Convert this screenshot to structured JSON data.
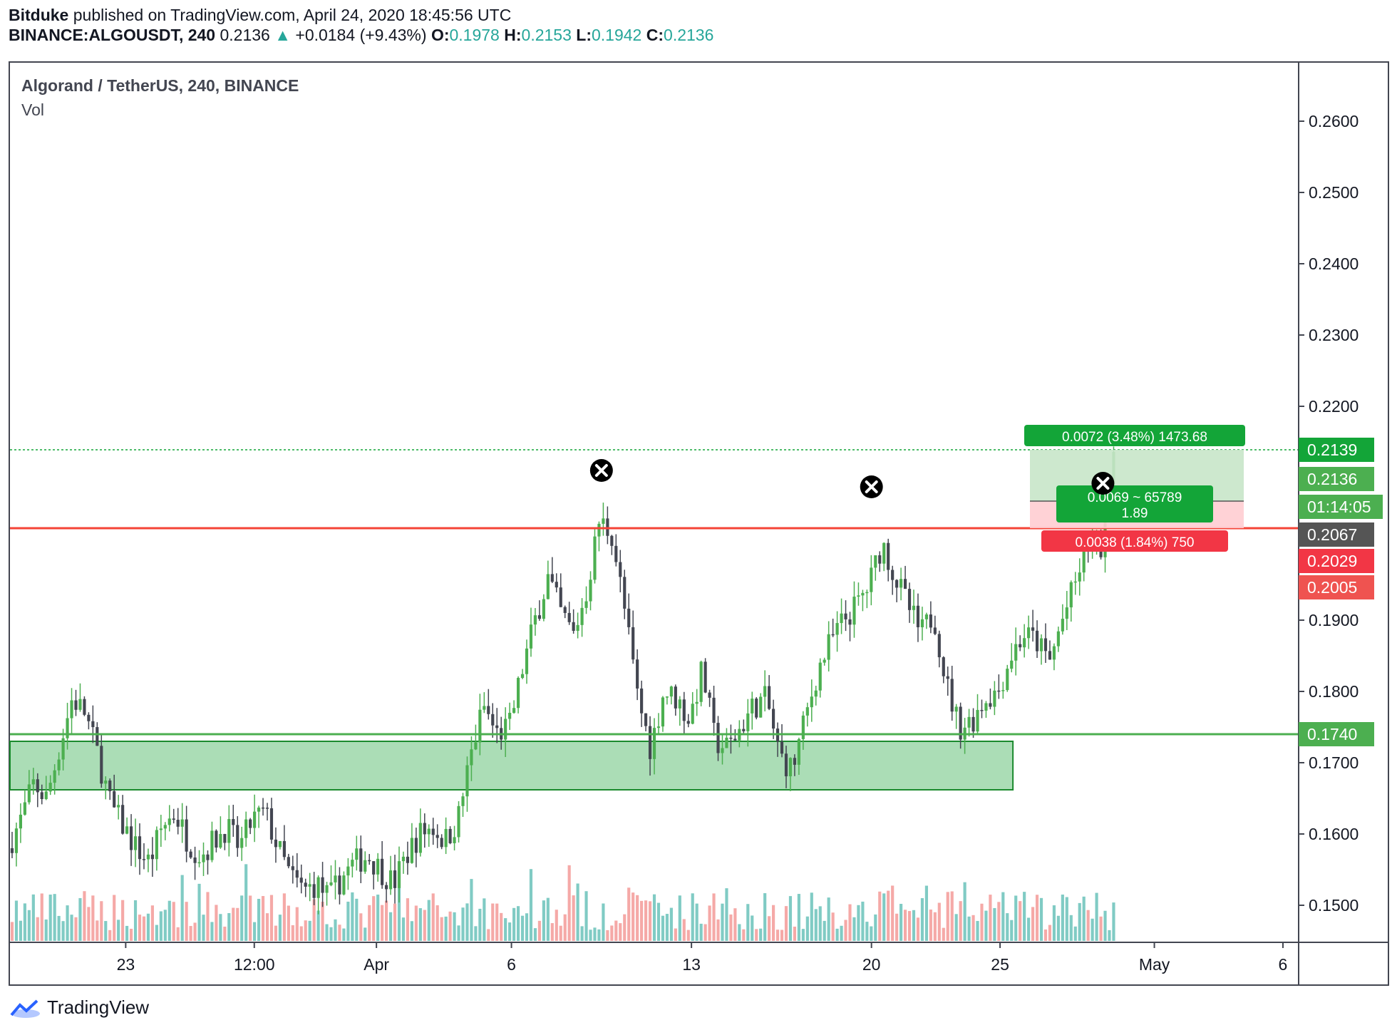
{
  "header": {
    "author": "Bitduke",
    "published": "published on TradingView.com, April 24, 2020 18:45:56 UTC",
    "symbol": "BINANCE:ALGOUSDT, 240",
    "last": "0.2136",
    "change": "+0.0184 (+9.43%)",
    "o_label": "O:",
    "o": "0.1978",
    "h_label": "H:",
    "h": "0.2153",
    "l_label": "L:",
    "l": "0.1942",
    "c_label": "C:",
    "c": "0.2136"
  },
  "legend": {
    "title": "Algorand / TetherUS, 240, BINANCE",
    "indicator": "Vol"
  },
  "brand": {
    "name": "TradingView"
  },
  "colors": {
    "up": "#26a69a",
    "down": "#ef5350",
    "zone": "#8fd19e",
    "support": "#4caf50",
    "resistance": "#f44336"
  },
  "chart_data": {
    "type": "candlestick",
    "title": "Algorand / TetherUS, 240, BINANCE",
    "ylim": [
      0.145,
      0.268
    ],
    "y_ticks": [
      "0.2600",
      "0.2500",
      "0.2400",
      "0.2300",
      "0.2200",
      "0.1900",
      "0.1800",
      "0.1700",
      "0.1600",
      "0.1500"
    ],
    "x_ticks": [
      "23",
      "12:00",
      "Apr",
      "6",
      "13",
      "20",
      "25",
      "May",
      "6"
    ],
    "x_tick_index": [
      0.09,
      0.19,
      0.285,
      0.39,
      0.53,
      0.67,
      0.77,
      0.89,
      0.99
    ],
    "price_series": [
      [
        0,
        0.158
      ],
      [
        0.01,
        0.162
      ],
      [
        0.02,
        0.167
      ],
      [
        0.03,
        0.165
      ],
      [
        0.04,
        0.172
      ],
      [
        0.05,
        0.179
      ],
      [
        0.06,
        0.177
      ],
      [
        0.07,
        0.171
      ],
      [
        0.08,
        0.164
      ],
      [
        0.09,
        0.161
      ],
      [
        0.1,
        0.158
      ],
      [
        0.11,
        0.156
      ],
      [
        0.12,
        0.161
      ],
      [
        0.13,
        0.163
      ],
      [
        0.14,
        0.159
      ],
      [
        0.15,
        0.157
      ],
      [
        0.16,
        0.159
      ],
      [
        0.17,
        0.161
      ],
      [
        0.18,
        0.158
      ],
      [
        0.19,
        0.162
      ],
      [
        0.2,
        0.163
      ],
      [
        0.21,
        0.158
      ],
      [
        0.22,
        0.154
      ],
      [
        0.23,
        0.152
      ],
      [
        0.24,
        0.153
      ],
      [
        0.25,
        0.151
      ],
      [
        0.26,
        0.154
      ],
      [
        0.27,
        0.156
      ],
      [
        0.28,
        0.157
      ],
      [
        0.29,
        0.155
      ],
      [
        0.3,
        0.153
      ],
      [
        0.31,
        0.157
      ],
      [
        0.32,
        0.16
      ],
      [
        0.33,
        0.161
      ],
      [
        0.34,
        0.159
      ],
      [
        0.35,
        0.162
      ],
      [
        0.36,
        0.171
      ],
      [
        0.37,
        0.178
      ],
      [
        0.38,
        0.174
      ],
      [
        0.39,
        0.175
      ],
      [
        0.4,
        0.183
      ],
      [
        0.41,
        0.19
      ],
      [
        0.42,
        0.196
      ],
      [
        0.43,
        0.191
      ],
      [
        0.44,
        0.188
      ],
      [
        0.45,
        0.194
      ],
      [
        0.46,
        0.204
      ],
      [
        0.47,
        0.202
      ],
      [
        0.48,
        0.191
      ],
      [
        0.49,
        0.179
      ],
      [
        0.5,
        0.172
      ],
      [
        0.51,
        0.18
      ],
      [
        0.52,
        0.179
      ],
      [
        0.53,
        0.176
      ],
      [
        0.54,
        0.183
      ],
      [
        0.55,
        0.173
      ],
      [
        0.56,
        0.172
      ],
      [
        0.57,
        0.175
      ],
      [
        0.58,
        0.178
      ],
      [
        0.59,
        0.179
      ],
      [
        0.6,
        0.171
      ],
      [
        0.61,
        0.169
      ],
      [
        0.62,
        0.176
      ],
      [
        0.63,
        0.183
      ],
      [
        0.64,
        0.187
      ],
      [
        0.65,
        0.19
      ],
      [
        0.66,
        0.192
      ],
      [
        0.67,
        0.195
      ],
      [
        0.68,
        0.201
      ],
      [
        0.69,
        0.196
      ],
      [
        0.7,
        0.192
      ],
      [
        0.71,
        0.188
      ],
      [
        0.72,
        0.191
      ],
      [
        0.73,
        0.181
      ],
      [
        0.74,
        0.175
      ],
      [
        0.75,
        0.176
      ],
      [
        0.76,
        0.179
      ],
      [
        0.77,
        0.18
      ],
      [
        0.78,
        0.185
      ],
      [
        0.79,
        0.188
      ],
      [
        0.8,
        0.187
      ],
      [
        0.81,
        0.184
      ],
      [
        0.82,
        0.19
      ],
      [
        0.83,
        0.195
      ],
      [
        0.84,
        0.201
      ],
      [
        0.85,
        0.2
      ],
      [
        0.86,
        0.2136
      ]
    ],
    "support_zone": [
      0.1662,
      0.173
    ],
    "support_line": 0.174,
    "resistance_line": 0.2029,
    "current_price_line": 0.2139,
    "markers": [
      [
        0.46,
        0.211
      ],
      [
        0.67,
        0.2087
      ],
      [
        0.85,
        0.2092
      ]
    ],
    "position": {
      "entry": 0.2067,
      "target": 0.2139,
      "stop": 0.2029,
      "target_label": "0.0072 (3.48%) 1473.68",
      "mid_label_line1": "0.0069 ~ 65789",
      "mid_label_line2": "1.89",
      "stop_label": "0.0038 (1.84%) 750"
    },
    "price_badges": [
      {
        "label": "0.2139",
        "value": 0.2139,
        "color": "#13a538"
      },
      {
        "label": "0.2136",
        "value": 0.2098,
        "color": "#4caf50"
      },
      {
        "label": "01:14:05",
        "value": 0.2059,
        "color": "#4caf50"
      },
      {
        "label": "0.2067",
        "value": 0.202,
        "color": "#555555"
      },
      {
        "label": "0.2029",
        "value": 0.1983,
        "color": "#f23645"
      },
      {
        "label": "0.2005",
        "value": 0.1946,
        "color": "#ef5350"
      },
      {
        "label": "0.1740",
        "value": 0.174,
        "color": "#4caf50"
      }
    ]
  }
}
